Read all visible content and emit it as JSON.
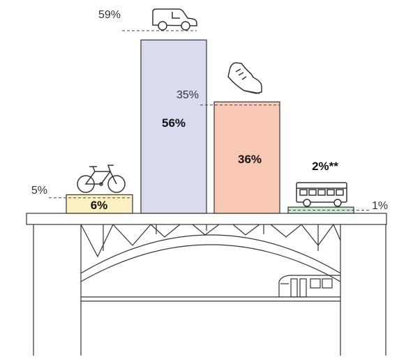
{
  "chart_data": {
    "type": "bar",
    "categories": [
      "bicycle",
      "car",
      "walking",
      "bus"
    ],
    "series": [
      {
        "values": [
          6,
          56,
          36,
          2
        ]
      },
      {
        "values": [
          5,
          59,
          35,
          1
        ]
      }
    ],
    "value_labels": [
      "6%",
      "56%",
      "36%",
      "2%**"
    ],
    "reference_labels": [
      "5%",
      "59%",
      "35%",
      "1%"
    ],
    "icons": [
      "bicycle-icon",
      "car-icon",
      "shoe-icon",
      "bus-icon"
    ],
    "colors": [
      "#fbf0c2",
      "#d9dbef",
      "#f8c8b4",
      "#cde6d2"
    ],
    "ylim": [
      0,
      59
    ],
    "grid": false,
    "legend": "none"
  }
}
